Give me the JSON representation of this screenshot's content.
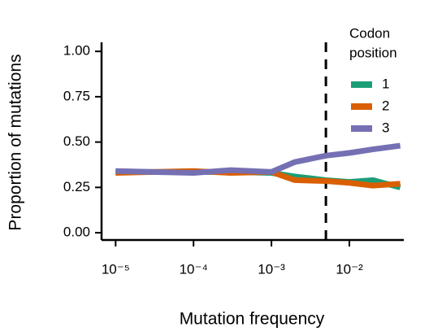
{
  "chart_data": {
    "type": "line",
    "x_label": "Mutation frequency",
    "y_label": "Proportion of mutations",
    "x": [
      1e-05,
      3e-05,
      0.0001,
      0.0003,
      0.001,
      0.002,
      0.005,
      0.01,
      0.02,
      0.045
    ],
    "series": [
      {
        "name": "1",
        "color": "#1b9e77",
        "values": [
          0.335,
          0.335,
          0.335,
          0.335,
          0.33,
          0.31,
          0.29,
          0.28,
          0.29,
          0.25
        ]
      },
      {
        "name": "2",
        "color": "#d95f02",
        "values": [
          0.33,
          0.335,
          0.34,
          0.33,
          0.335,
          0.29,
          0.285,
          0.275,
          0.26,
          0.27
        ]
      },
      {
        "name": "3",
        "color": "#7570b3",
        "values": [
          0.34,
          0.335,
          0.33,
          0.345,
          0.335,
          0.39,
          0.425,
          0.44,
          0.46,
          0.48
        ]
      }
    ],
    "legend_title": [
      "Codon",
      "position"
    ],
    "x_log": true,
    "xlim": [
      6.6e-06,
      0.05
    ],
    "xticks": [
      {
        "value": 1e-05,
        "label": "10⁻⁵"
      },
      {
        "value": 0.0001,
        "label": "10⁻⁴"
      },
      {
        "value": 0.001,
        "label": "10⁻³"
      },
      {
        "value": 0.01,
        "label": "10⁻²"
      }
    ],
    "ylim": [
      -0.04,
      1.05
    ],
    "yticks": [
      {
        "value": 0,
        "label": "0.00"
      },
      {
        "value": 0.25,
        "label": "0.25"
      },
      {
        "value": 0.5,
        "label": "0.50"
      },
      {
        "value": 0.75,
        "label": "0.75"
      },
      {
        "value": 1,
        "label": "1.00"
      }
    ],
    "vline": 0.005
  }
}
